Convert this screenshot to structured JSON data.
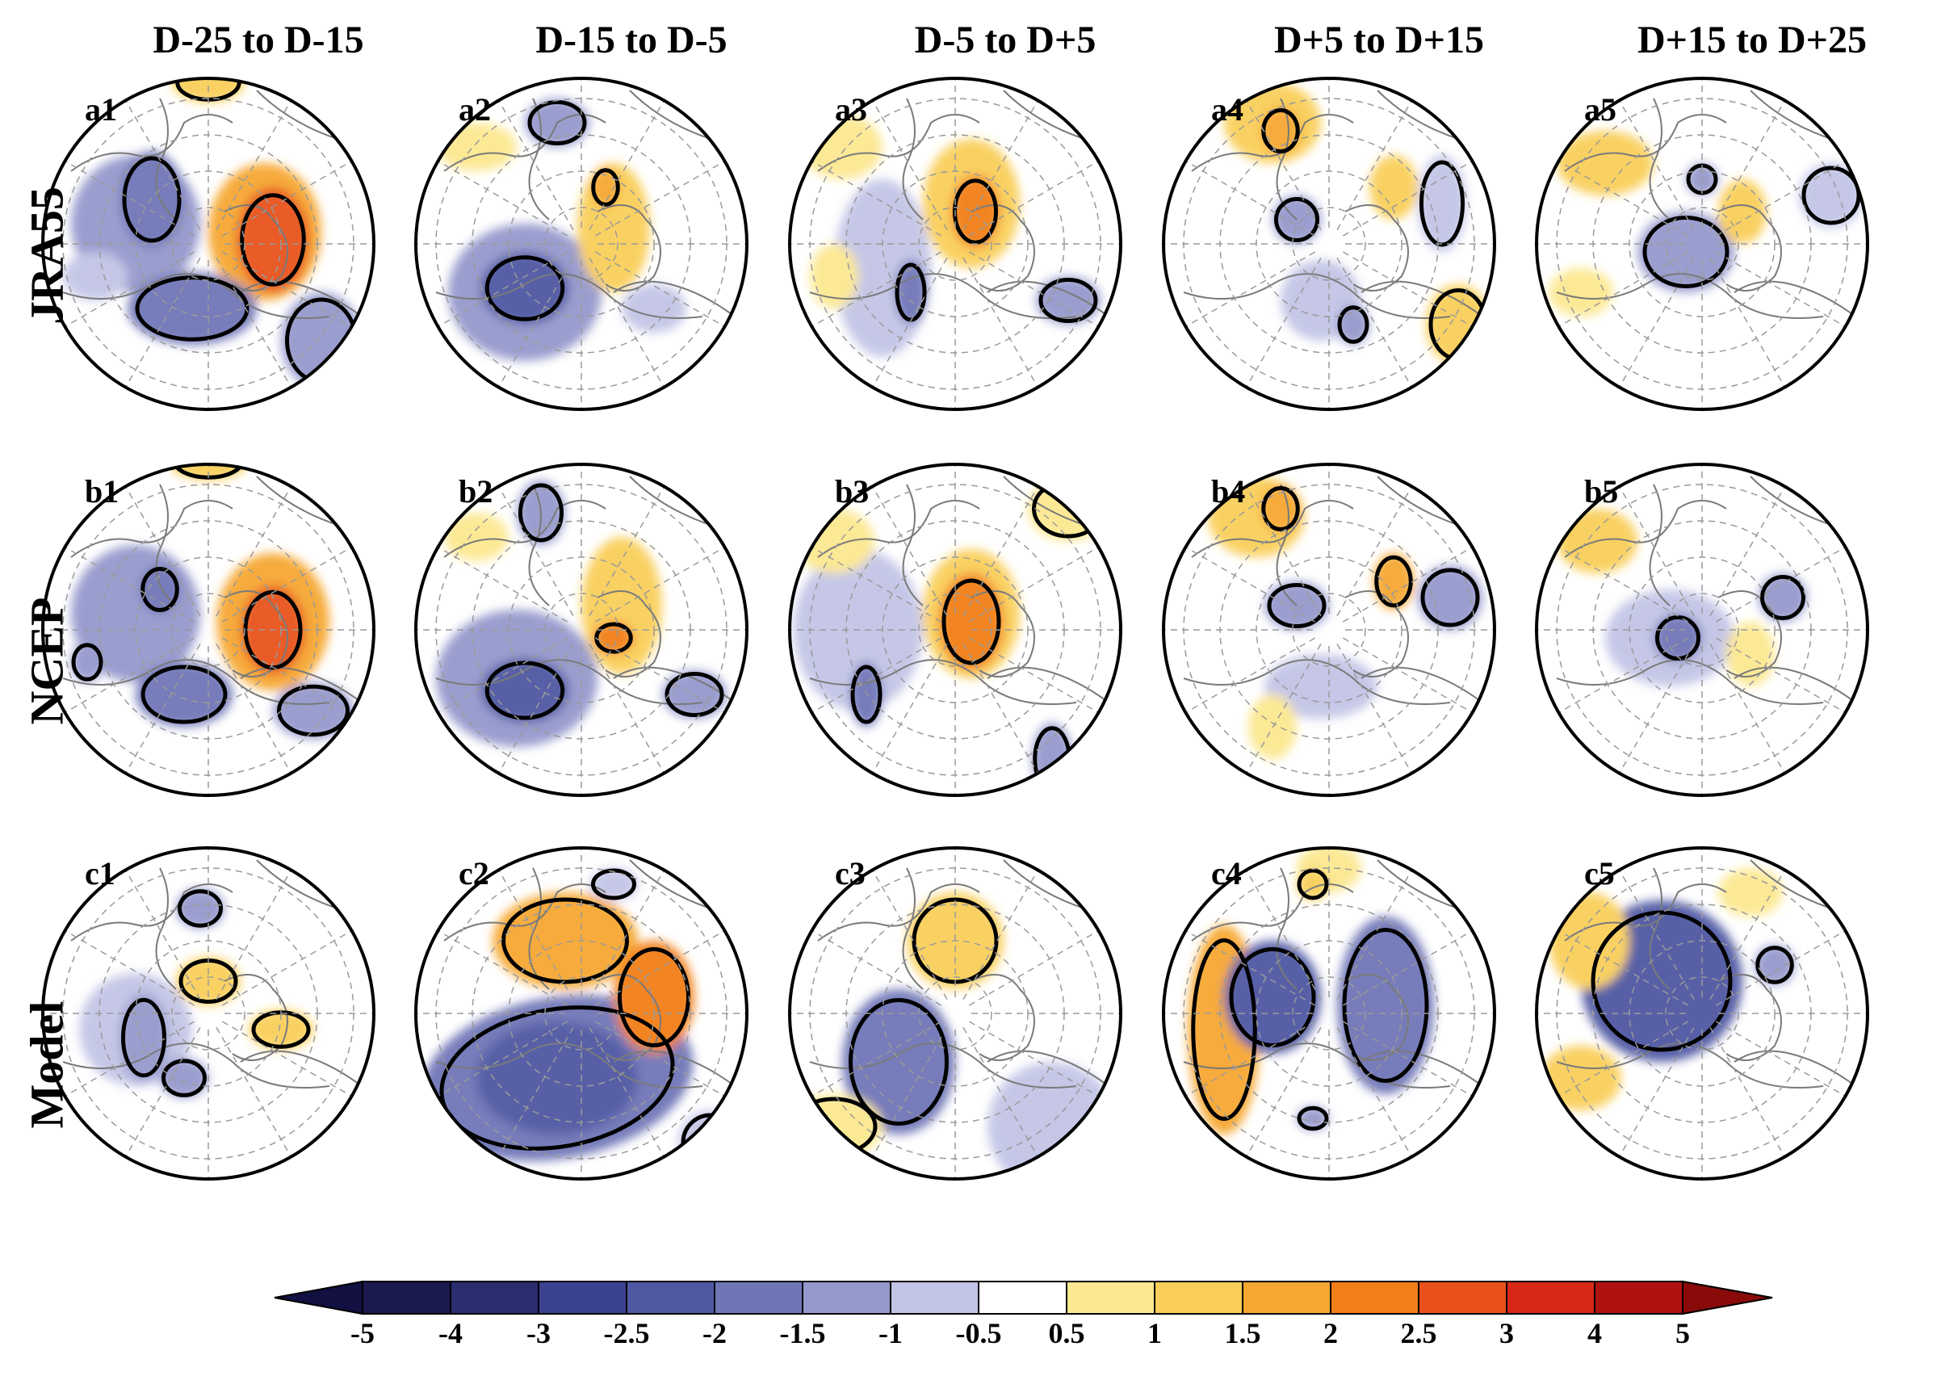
{
  "columns": [
    "D-25 to D-15",
    "D-15 to D-5",
    "D-5 to D+5",
    "D+5 to D+15",
    "D+15 to D+25"
  ],
  "rows": [
    "JRA55",
    "NCEP",
    "Model"
  ],
  "panels": [
    [
      "a1",
      "a2",
      "a3",
      "a4",
      "a5"
    ],
    [
      "b1",
      "b2",
      "b3",
      "b4",
      "b5"
    ],
    [
      "c1",
      "c2",
      "c3",
      "c4",
      "c5"
    ]
  ],
  "colorbar": {
    "ticks": [
      "-5",
      "-4",
      "-3",
      "-2.5",
      "-2",
      "-1.5",
      "-1",
      "-0.5",
      "0.5",
      "1",
      "1.5",
      "2",
      "2.5",
      "3",
      "4",
      "5"
    ],
    "colors": [
      "#1b1a4e",
      "#2a2d6e",
      "#3b4290",
      "#5058a3",
      "#6f76b7",
      "#9599cc",
      "#c3c5e6",
      "#ffffff",
      "#fce890",
      "#f9cf5a",
      "#f6a732",
      "#f27e18",
      "#e8521a",
      "#d82817",
      "#b01210"
    ],
    "low_extend": "#121040",
    "high_extend": "#8a0a0a"
  }
}
